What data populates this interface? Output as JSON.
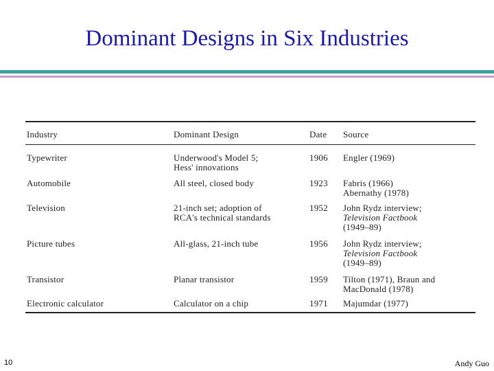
{
  "title": "Dominant Designs in Six Industries",
  "table": {
    "header": [
      "Industry",
      "Dominant Design",
      "Date",
      "Source"
    ],
    "rows": [
      [
        [
          "Typewriter"
        ],
        [
          "Underwood's Model 5;",
          "Hess' innovations"
        ],
        [
          "1906"
        ],
        [
          "Engler (1969)"
        ]
      ],
      [
        [
          "Automobile"
        ],
        [
          "All steel, closed body"
        ],
        [
          "1923"
        ],
        [
          "Fabris (1966)",
          "Abernathy (1978)"
        ]
      ],
      [
        [
          "Television"
        ],
        [
          "21-inch set; adoption of",
          "RCA's technical standards"
        ],
        [
          "1952"
        ],
        [
          "John Rydz interview;",
          {
            "text": "Television Factbook",
            "italic": true
          },
          "(1949–89)"
        ]
      ],
      [
        [
          "Picture tubes"
        ],
        [
          "All-glass, 21-inch tube"
        ],
        [
          "1956"
        ],
        [
          "John Rydz interview;",
          {
            "text": "Television Factbook",
            "italic": true
          },
          "(1949–89)"
        ]
      ],
      [
        [
          "Transistor"
        ],
        [
          "Planar transistor"
        ],
        [
          "1959"
        ],
        [
          "Tilton (1971), Braun and",
          "MacDonald (1978)"
        ]
      ],
      [
        [
          "Electronic calculator"
        ],
        [
          "Calculator on a chip"
        ],
        [
          "1971"
        ],
        [
          "Majumdar (1977)"
        ]
      ]
    ]
  },
  "footer": {
    "page": "10",
    "author": "Andy Guo"
  }
}
